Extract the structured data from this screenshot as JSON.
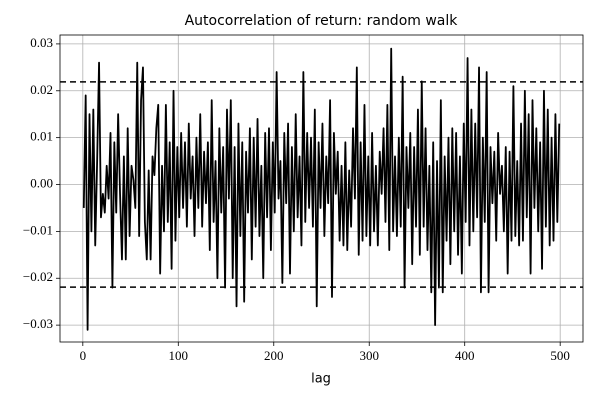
{
  "chart_data": {
    "type": "line",
    "title": "Autocorrelation of return: random walk",
    "xlabel": "lag",
    "color": "#000000",
    "grid": true,
    "xlim": [
      -23.9,
      523.9
    ],
    "xticks": [
      0,
      100,
      200,
      300,
      400,
      500
    ],
    "ylim": [
      -0.0336,
      0.0319
    ],
    "yticks": [
      {
        "value": -0.03,
        "label": "−0.03"
      },
      {
        "value": -0.02,
        "label": "−0.02"
      },
      {
        "value": -0.01,
        "label": "−0.01"
      },
      {
        "value": 0,
        "label": "0.00"
      },
      {
        "value": 0.01,
        "label": "0.01"
      },
      {
        "value": 0.02,
        "label": "0.02"
      },
      {
        "value": 0.03,
        "label": "0.03"
      }
    ],
    "hlines": [
      0.0219,
      -0.0219
    ],
    "hline_style": "dashed",
    "x": [
      1,
      3,
      5,
      7,
      9,
      11,
      13,
      15,
      17,
      19,
      21,
      23,
      25,
      27,
      29,
      31,
      33,
      35,
      37,
      39,
      41,
      43,
      45,
      47,
      49,
      51,
      53,
      55,
      57,
      59,
      61,
      63,
      65,
      67,
      69,
      71,
      73,
      75,
      77,
      79,
      81,
      83,
      85,
      87,
      89,
      91,
      93,
      95,
      97,
      99,
      101,
      103,
      105,
      107,
      109,
      111,
      113,
      115,
      117,
      119,
      121,
      123,
      125,
      127,
      129,
      131,
      133,
      135,
      137,
      139,
      141,
      143,
      145,
      147,
      149,
      151,
      153,
      155,
      157,
      159,
      161,
      163,
      165,
      167,
      169,
      171,
      173,
      175,
      177,
      179,
      181,
      183,
      185,
      187,
      189,
      191,
      193,
      195,
      197,
      199,
      201,
      203,
      205,
      207,
      209,
      211,
      213,
      215,
      217,
      219,
      221,
      223,
      225,
      227,
      229,
      231,
      233,
      235,
      237,
      239,
      241,
      243,
      245,
      247,
      249,
      251,
      253,
      255,
      257,
      259,
      261,
      263,
      265,
      267,
      269,
      271,
      273,
      275,
      277,
      279,
      281,
      283,
      285,
      287,
      289,
      291,
      293,
      295,
      297,
      299,
      301,
      303,
      305,
      307,
      309,
      311,
      313,
      315,
      317,
      319,
      321,
      323,
      325,
      327,
      329,
      331,
      333,
      335,
      337,
      339,
      341,
      343,
      345,
      347,
      349,
      351,
      353,
      355,
      357,
      359,
      361,
      363,
      365,
      367,
      369,
      371,
      373,
      375,
      377,
      379,
      381,
      383,
      385,
      387,
      389,
      391,
      393,
      395,
      397,
      399,
      401,
      403,
      405,
      407,
      409,
      411,
      413,
      415,
      417,
      419,
      421,
      423,
      425,
      427,
      429,
      431,
      433,
      435,
      437,
      439,
      441,
      443,
      445,
      447,
      449,
      451,
      453,
      455,
      457,
      459,
      461,
      463,
      465,
      467,
      469,
      471,
      473,
      475,
      477,
      479,
      481,
      483,
      485,
      487,
      489,
      491,
      493,
      495,
      497,
      499
    ],
    "values": [
      -0.005,
      0.019,
      -0.031,
      0.015,
      -0.01,
      0.016,
      -0.013,
      0.005,
      0.026,
      -0.007,
      -0.002,
      -0.006,
      0.004,
      -0.003,
      0.011,
      -0.022,
      0.009,
      -0.006,
      0.015,
      -0.002,
      -0.016,
      0.006,
      -0.016,
      0.012,
      -0.011,
      0.004,
      0.001,
      -0.005,
      0.026,
      -0.011,
      0.018,
      0.025,
      -0.008,
      -0.016,
      0.003,
      -0.016,
      0.006,
      0.002,
      0.012,
      0.017,
      -0.019,
      0.004,
      -0.01,
      0.017,
      -0.008,
      0.009,
      -0.018,
      0.02,
      -0.012,
      0.008,
      -0.007,
      0.011,
      -0.005,
      0.009,
      -0.009,
      0.013,
      -0.003,
      0.006,
      -0.011,
      0.01,
      -0.005,
      0.015,
      -0.009,
      0.007,
      -0.004,
      0.009,
      -0.014,
      0.018,
      -0.008,
      0.005,
      -0.02,
      0.012,
      -0.006,
      0.008,
      -0.022,
      0.016,
      -0.003,
      0.018,
      -0.02,
      0.008,
      -0.026,
      0.013,
      -0.011,
      0.009,
      -0.025,
      0.007,
      -0.006,
      0.012,
      -0.016,
      0.01,
      -0.009,
      0.014,
      -0.011,
      0.004,
      -0.02,
      0.011,
      -0.007,
      0.012,
      -0.014,
      0.009,
      -0.006,
      0.024,
      -0.003,
      0.005,
      -0.021,
      0.011,
      -0.004,
      0.013,
      -0.019,
      0.008,
      -0.01,
      0.015,
      -0.007,
      0.006,
      -0.013,
      0.024,
      -0.008,
      0.011,
      -0.005,
      0.01,
      -0.009,
      0.016,
      -0.026,
      0.009,
      -0.005,
      0.013,
      -0.011,
      0.006,
      -0.004,
      0.018,
      -0.024,
      0.011,
      -0.002,
      0.007,
      -0.012,
      0.004,
      -0.013,
      0.009,
      -0.014,
      0.003,
      -0.009,
      0.012,
      -0.003,
      0.025,
      -0.015,
      0.009,
      -0.012,
      0.017,
      -0.011,
      0.006,
      -0.013,
      0.011,
      -0.01,
      0.004,
      -0.013,
      0.007,
      -0.002,
      0.012,
      -0.008,
      0.017,
      -0.014,
      0.029,
      -0.01,
      0.006,
      -0.011,
      0.01,
      -0.009,
      0.023,
      -0.022,
      0.008,
      -0.005,
      0.011,
      -0.017,
      0.008,
      -0.009,
      0.016,
      -0.015,
      0.022,
      -0.009,
      0.012,
      -0.014,
      0.004,
      -0.023,
      0.009,
      -0.03,
      0.005,
      -0.022,
      0.018,
      -0.023,
      0.006,
      -0.012,
      0.01,
      -0.017,
      0.012,
      -0.01,
      0.011,
      -0.015,
      0.006,
      -0.019,
      0.013,
      -0.008,
      0.027,
      -0.013,
      0.016,
      -0.01,
      0.013,
      -0.007,
      0.025,
      -0.023,
      0.01,
      -0.008,
      0.024,
      -0.023,
      0.008,
      -0.004,
      0.007,
      -0.012,
      0.011,
      -0.002,
      0.004,
      -0.01,
      0.008,
      -0.019,
      0.007,
      -0.012,
      0.021,
      -0.011,
      0.005,
      -0.013,
      0.013,
      -0.012,
      0.02,
      -0.007,
      0.015,
      -0.019,
      0.018,
      -0.005,
      0.012,
      -0.01,
      0.009,
      -0.018,
      0.02,
      -0.009,
      0.016,
      -0.013,
      0.01,
      -0.012,
      0.015,
      -0.008,
      0.013
    ]
  }
}
